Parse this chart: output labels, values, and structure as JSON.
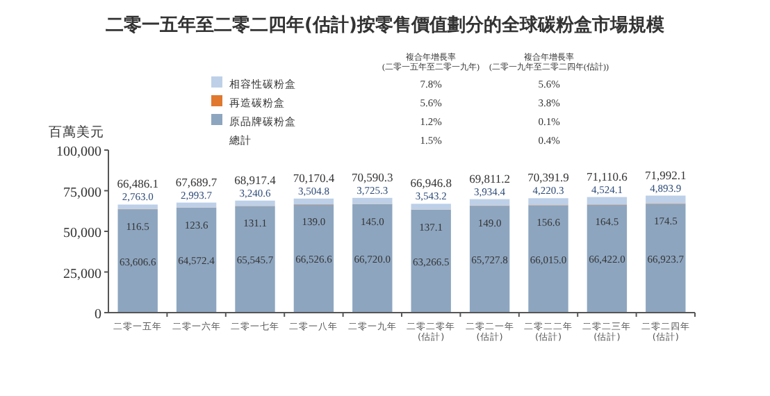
{
  "chart_data": {
    "type": "bar",
    "stacked": true,
    "title": "二零一五年至二零二四年(估計)按零售價值劃分的全球碳粉盒市場規模",
    "ylabel": "百萬美元",
    "categories": [
      "二零一五年",
      "二零一六年",
      "二零一七年",
      "二零一八年",
      "二零一九年",
      "二零二零年\n(估計)",
      "二零二一年\n(估計)",
      "二零二二年\n(估計)",
      "二零二三年\n(估計)",
      "二零二四年\n(估計)"
    ],
    "series": [
      {
        "name": "原品牌碳粉盒",
        "color": "#8da5bf",
        "values": [
          63606.6,
          64572.4,
          65545.7,
          66526.6,
          66720.0,
          63266.5,
          65727.8,
          66015.0,
          66422.0,
          66923.7
        ],
        "value_labels": [
          "63,606.6",
          "64,572.4",
          "65,545.7",
          "66,526.6",
          "66,720.0",
          "63,266.5",
          "65,727.8",
          "66,015.0",
          "66,422.0",
          "66,923.7"
        ]
      },
      {
        "name": "再造碳粉盒",
        "color": "#e0782e",
        "values": [
          116.5,
          123.6,
          131.1,
          139.0,
          145.0,
          137.1,
          149.0,
          156.6,
          164.5,
          174.5
        ],
        "value_labels": [
          "116.5",
          "123.6",
          "131.1",
          "139.0",
          "145.0",
          "137.1",
          "149.0",
          "156.6",
          "164.5",
          "174.5"
        ]
      },
      {
        "name": "相容性碳粉盒",
        "color": "#bdd0e8",
        "values": [
          2763.0,
          2993.7,
          3240.6,
          3504.8,
          3725.3,
          3543.2,
          3934.4,
          4220.3,
          4524.1,
          4893.9
        ],
        "value_labels": [
          "2,763.0",
          "2,993.7",
          "3,240.6",
          "3,504.8",
          "3,725.3",
          "3,543.2",
          "3,934.4",
          "4,220.3",
          "4,524.1",
          "4,893.9"
        ]
      }
    ],
    "totals": [
      "66,486.1",
      "67,689.7",
      "68,917.4",
      "70,170.4",
      "70,590.3",
      "66,946.8",
      "69,811.2",
      "70,391.9",
      "71,110.6",
      "71,992.1"
    ],
    "ylim": [
      0,
      100000
    ],
    "yticks": [
      {
        "value": 0,
        "label": "0"
      },
      {
        "value": 25000,
        "label": "25,000"
      },
      {
        "value": 50000,
        "label": "50,000"
      },
      {
        "value": 75000,
        "label": "75,000"
      },
      {
        "value": 100000,
        "label": "100,000"
      }
    ],
    "legend": "top",
    "grid": false,
    "annotations": [
      "複合年增長率\n(二零一五年至二零一九年)",
      "複合年增長率\n(二零一九年至二零二四年(估計))",
      "7.8%",
      "5.6%",
      "5.6%",
      "3.8%",
      "1.2%",
      "0.1%",
      "總計",
      "1.5%",
      "0.4%"
    ]
  }
}
